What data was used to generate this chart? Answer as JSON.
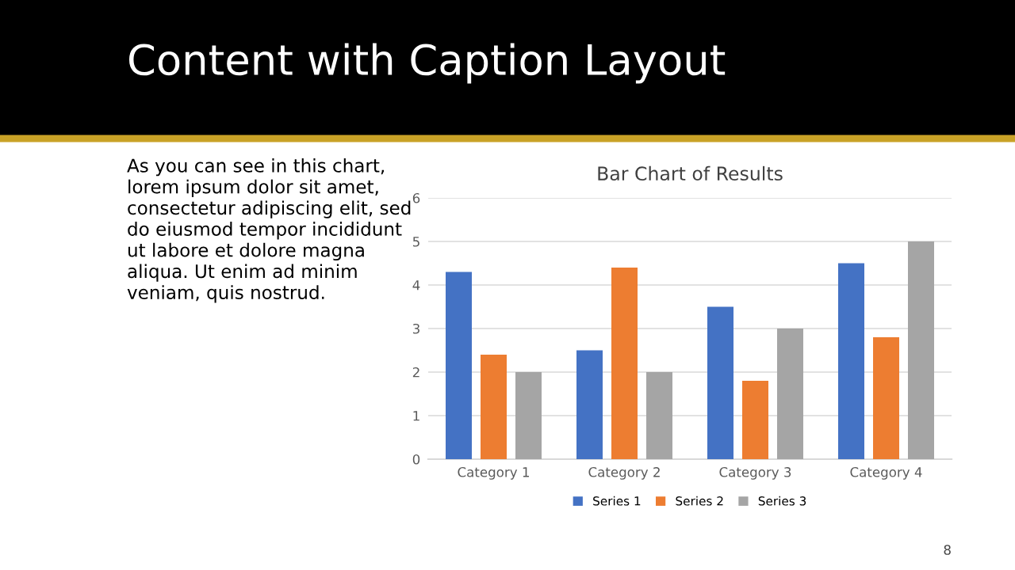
{
  "chart_data": {
    "type": "bar",
    "title": "Bar Chart of Results",
    "categories": [
      "Category 1",
      "Category 2",
      "Category 3",
      "Category 4"
    ],
    "series": [
      {
        "name": "Series 1",
        "color": "#4472c4",
        "values": [
          4.3,
          2.5,
          3.5,
          4.5
        ]
      },
      {
        "name": "Series 2",
        "color": "#ed7d31",
        "values": [
          2.4,
          4.4,
          1.8,
          2.8
        ]
      },
      {
        "name": "Series 3",
        "color": "#a5a5a5",
        "values": [
          2,
          2,
          3,
          5
        ]
      }
    ],
    "ylim": [
      0,
      6
    ],
    "yticks": [
      0,
      1,
      2,
      3,
      4,
      5,
      6
    ],
    "grid": "y",
    "legend": "bottom",
    "annotations": [
      "Content with Caption Layout",
      "As you can see in this chart,\nlorem ipsum dolor sit amet,\nconsectetur adipiscing elit, sed\ndo eiusmod tempor incididunt\nut labore et dolore magna\naliqua. Ut enim ad minim\nveniam, quis nostrud.",
      "8"
    ]
  }
}
